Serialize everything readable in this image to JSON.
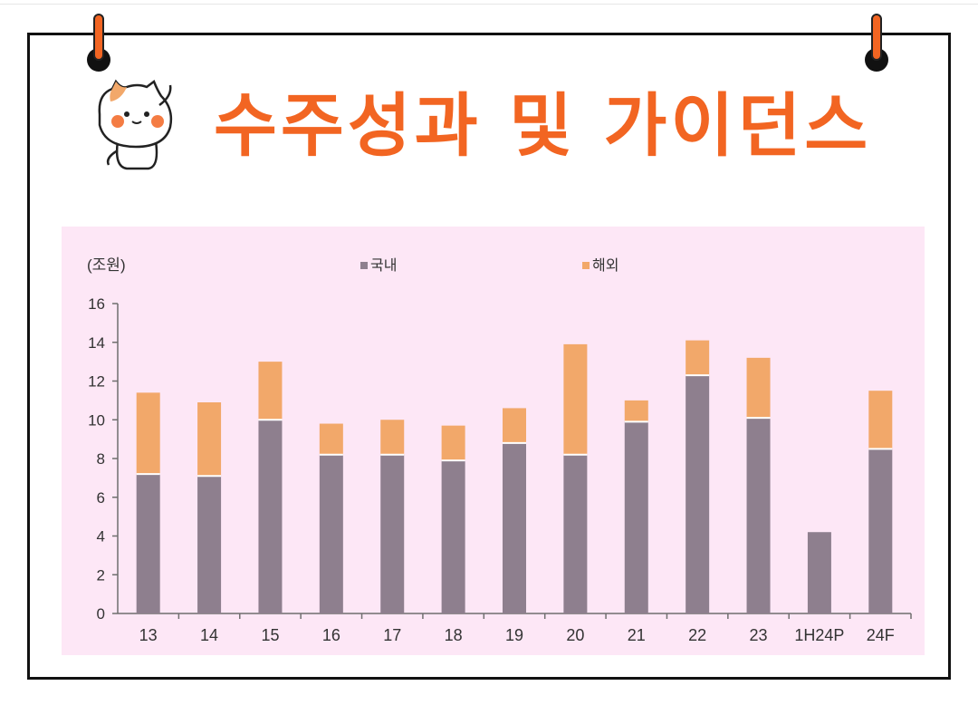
{
  "page": {
    "title": "수주성과 및 가이던스"
  },
  "colors": {
    "title": "#f26522",
    "panel_bg": "#fde7f6",
    "domestic": "#8e7f8e",
    "overseas": "#f2a86a",
    "axis": "#6f6f6f"
  },
  "chart_data": {
    "type": "bar",
    "stacked": true,
    "unit_label": "(조원)",
    "categories": [
      "13",
      "14",
      "15",
      "16",
      "17",
      "18",
      "19",
      "20",
      "21",
      "22",
      "23",
      "1H24P",
      "24F"
    ],
    "series": [
      {
        "name": "국내",
        "color": "#8e7f8e",
        "values": [
          7.2,
          7.1,
          10.0,
          8.2,
          8.2,
          7.9,
          8.8,
          8.2,
          9.9,
          12.3,
          10.1,
          4.2,
          8.5
        ]
      },
      {
        "name": "해외",
        "color": "#f2a86a",
        "values": [
          4.2,
          3.8,
          3.0,
          1.6,
          1.8,
          1.8,
          1.8,
          5.7,
          1.1,
          1.8,
          3.1,
          0,
          3.0
        ]
      }
    ],
    "ylim": [
      0,
      16
    ],
    "yticks": [
      0,
      2,
      4,
      6,
      8,
      10,
      12,
      14,
      16
    ],
    "legend_position": "top-center",
    "grid": false
  }
}
